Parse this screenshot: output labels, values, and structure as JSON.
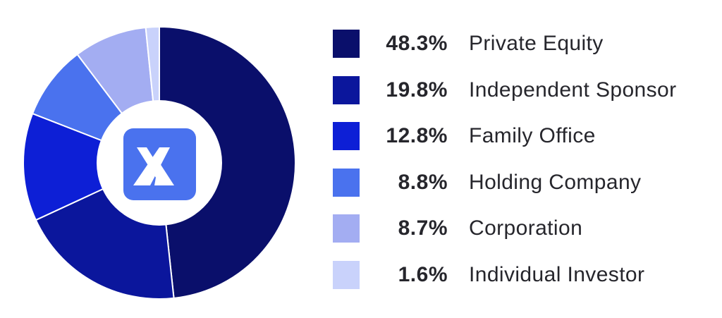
{
  "chart_data": {
    "type": "pie",
    "style": "donut",
    "center_logo": "stylized-a-logo-icon",
    "categories": [
      "Private Equity",
      "Independent Sponsor",
      "Family Office",
      "Holding Company",
      "Corporation",
      "Individual Investor"
    ],
    "values": [
      48.3,
      19.8,
      12.8,
      8.8,
      8.7,
      1.6
    ],
    "value_labels": [
      "48.3%",
      "19.8%",
      "12.8%",
      "8.8%",
      "8.7%",
      "1.6%"
    ],
    "colors": [
      "#0a0f6b",
      "#0b169c",
      "#0d1fd6",
      "#4a72ee",
      "#a3adf2",
      "#c9d2fb"
    ],
    "legend_position": "right",
    "title": "",
    "xlabel": "",
    "ylabel": ""
  },
  "logo": {
    "background": "#4a72ee",
    "foreground": "#ffffff"
  }
}
